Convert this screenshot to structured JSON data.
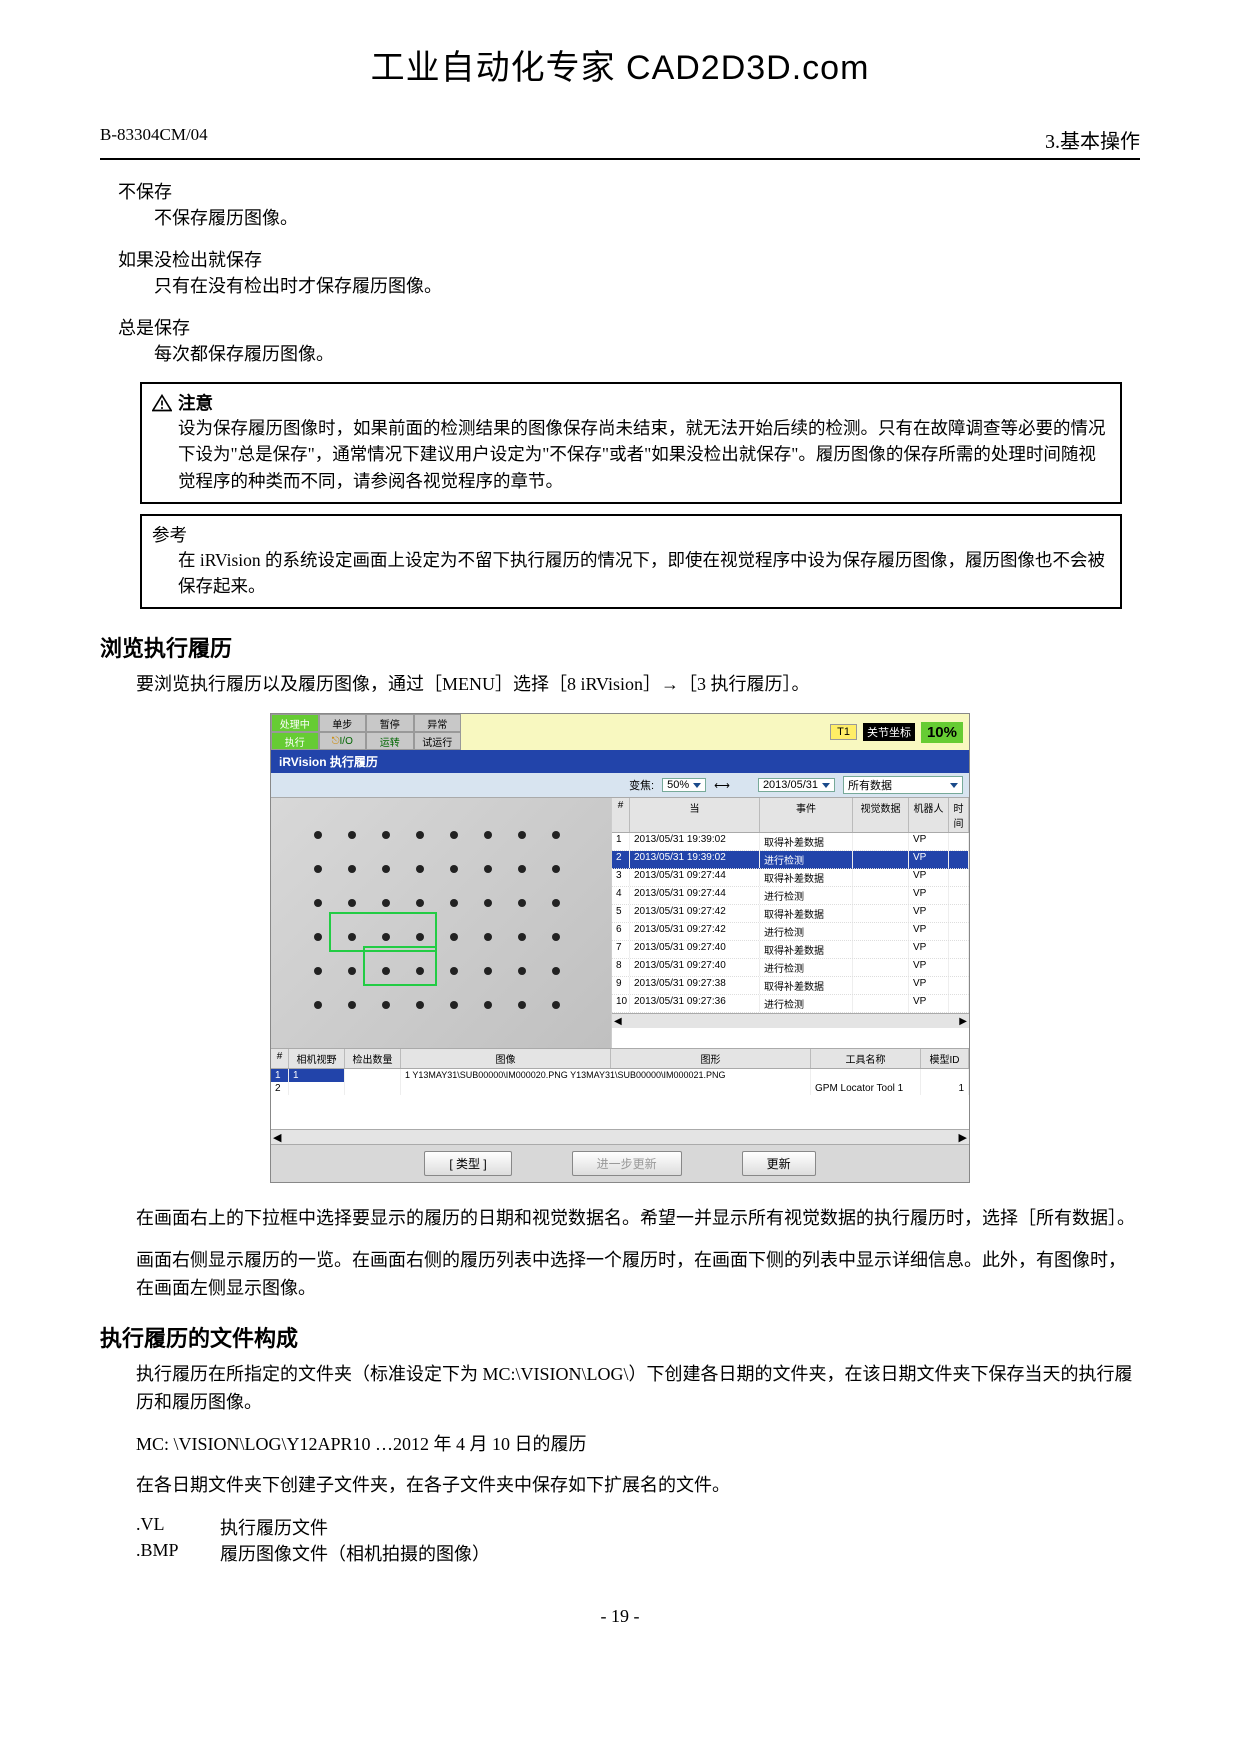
{
  "watermark": "工业自动化专家 CAD2D3D.com",
  "header": {
    "doc_id": "B-83304CM/04",
    "section": "3.基本操作"
  },
  "options": [
    {
      "title": "不保存",
      "desc": "不保存履历图像。"
    },
    {
      "title": "如果没检出就保存",
      "desc": "只有在没有检出时才保存履历图像。"
    },
    {
      "title": "总是保存",
      "desc": "每次都保存履历图像。"
    }
  ],
  "note": {
    "title": "注意",
    "body": "设为保存履历图像时，如果前面的检测结果的图像保存尚未结束，就无法开始后续的检测。只有在故障调查等必要的情况下设为\"总是保存\"，通常情况下建议用户设定为\"不保存\"或者\"如果没检出就保存\"。履历图像的保存所需的处理时间随视觉程序的种类而不同，请参阅各视觉程序的章节。"
  },
  "ref": {
    "title": "参考",
    "body": "在 iRVision 的系统设定画面上设定为不留下执行履历的情况下，即使在视觉程序中设为保存履历图像，履历图像也不会被保存起来。"
  },
  "browse": {
    "heading": "浏览执行履历",
    "intro": "要浏览执行履历以及履历图像，通过［MENU］选择［8 iRVision］→［3 执行履历］。"
  },
  "ui": {
    "status": {
      "proc": "处理中",
      "pause": "单步",
      "error": "异常",
      "exec": "执行",
      "io": "I/O",
      "run": "运转",
      "test": "试运行",
      "t1": "T1",
      "joint": "关节坐标",
      "pct": "10%"
    },
    "title": "iRVision 执行履历",
    "toolbar": {
      "zoom_label": "变焦:",
      "zoom_val": "50%",
      "date": "2013/05/31",
      "data": "所有数据"
    },
    "list_head": {
      "num": "#",
      "date": "当",
      "event": "事件",
      "vision": "视觉数据",
      "robot": "机器人",
      "t": "时间"
    },
    "rows": [
      {
        "n": "1",
        "d": "2013/05/31 19:39:02",
        "e": "取得补差数据",
        "v": "",
        "r": "VP"
      },
      {
        "n": "2",
        "d": "2013/05/31 19:39:02",
        "e": "进行检测",
        "v": "",
        "r": "VP"
      },
      {
        "n": "3",
        "d": "2013/05/31 09:27:44",
        "e": "取得补差数据",
        "v": "",
        "r": "VP"
      },
      {
        "n": "4",
        "d": "2013/05/31 09:27:44",
        "e": "进行检测",
        "v": "",
        "r": "VP"
      },
      {
        "n": "5",
        "d": "2013/05/31 09:27:42",
        "e": "取得补差数据",
        "v": "",
        "r": "VP"
      },
      {
        "n": "6",
        "d": "2013/05/31 09:27:42",
        "e": "进行检测",
        "v": "",
        "r": "VP"
      },
      {
        "n": "7",
        "d": "2013/05/31 09:27:40",
        "e": "取得补差数据",
        "v": "",
        "r": "VP"
      },
      {
        "n": "8",
        "d": "2013/05/31 09:27:40",
        "e": "进行检测",
        "v": "",
        "r": "VP"
      },
      {
        "n": "9",
        "d": "2013/05/31 09:27:38",
        "e": "取得补差数据",
        "v": "",
        "r": "VP"
      },
      {
        "n": "10",
        "d": "2013/05/31 09:27:36",
        "e": "进行检测",
        "v": "",
        "r": "VP"
      }
    ],
    "detail_head": {
      "n": "#",
      "cam": "相机视野",
      "det": "检出数量",
      "img": "图像",
      "shape": "图形",
      "tool": "工具名称",
      "mid": "模型ID"
    },
    "detail_rows": [
      {
        "n": "1",
        "cam": "1",
        "det": "",
        "img": "1 Y13MAY31\\SUB00000\\IM000020.PNG Y13MAY31\\SUB00000\\IM000021.PNG",
        "tool": "",
        "mid": ""
      },
      {
        "n": "2",
        "cam": "",
        "det": "",
        "img": "",
        "tool": "GPM Locator Tool 1",
        "mid": "1"
      }
    ],
    "buttons": {
      "type": "[ 类型 ]",
      "refresh_more": "进一步更新",
      "refresh": "更新"
    }
  },
  "after_ui": [
    "在画面右上的下拉框中选择要显示的履历的日期和视觉数据名。希望一并显示所有视觉数据的执行履历时，选择［所有数据］。",
    "画面右侧显示履历的一览。在画面右侧的履历列表中选择一个履历时，在画面下侧的列表中显示详细信息。此外，有图像时，在画面左侧显示图像。"
  ],
  "files": {
    "heading": "执行履历的文件构成",
    "p1": "执行履历在所指定的文件夹（标准设定下为 MC:\\VISION\\LOG\\）下创建各日期的文件夹，在该日期文件夹下保存当天的执行履历和履历图像。",
    "example": "MC: \\VISION\\LOG\\Y12APR10    …2012 年 4 月 10 日的履历",
    "p2": "在各日期文件夹下创建子文件夹，在各子文件夹中保存如下扩展名的文件。",
    "exts": [
      {
        "ext": ".VL",
        "desc": "执行履历文件"
      },
      {
        "ext": ".BMP",
        "desc": "履历图像文件（相机拍摄的图像）"
      }
    ]
  },
  "page_num": "- 19 -"
}
